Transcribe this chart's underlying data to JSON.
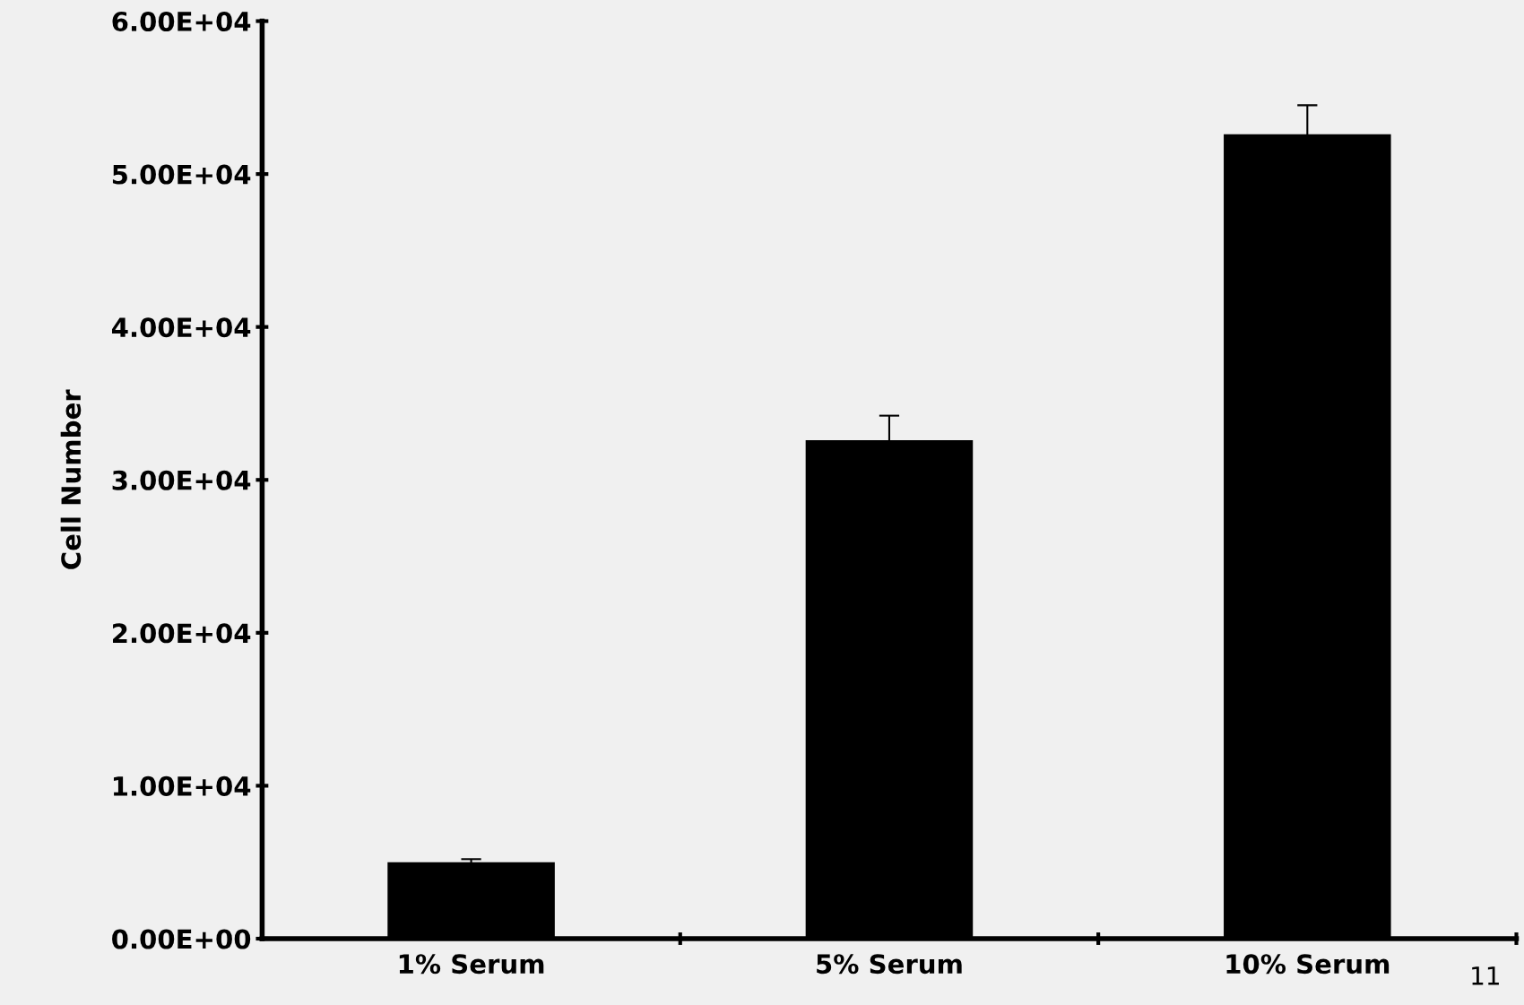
{
  "chart_data": {
    "type": "bar",
    "ylabel": "Cell Number",
    "categories": [
      "1% Serum",
      "5% Serum",
      "10% Serum"
    ],
    "values": [
      5000,
      32600,
      52600
    ],
    "errors": [
      200,
      1600,
      1900
    ],
    "color": "#000000",
    "ylim": [
      0,
      60000
    ],
    "yticks": [
      {
        "value": 0,
        "label": "0.00E+00"
      },
      {
        "value": 10000,
        "label": "1.00E+04"
      },
      {
        "value": 20000,
        "label": "2.00E+04"
      },
      {
        "value": 30000,
        "label": "3.00E+04"
      },
      {
        "value": 40000,
        "label": "4.00E+04"
      },
      {
        "value": 50000,
        "label": "5.00E+04"
      },
      {
        "value": 60000,
        "label": "6.00E+04"
      }
    ],
    "grid": false,
    "legend": false,
    "annotations": [
      "11"
    ]
  }
}
